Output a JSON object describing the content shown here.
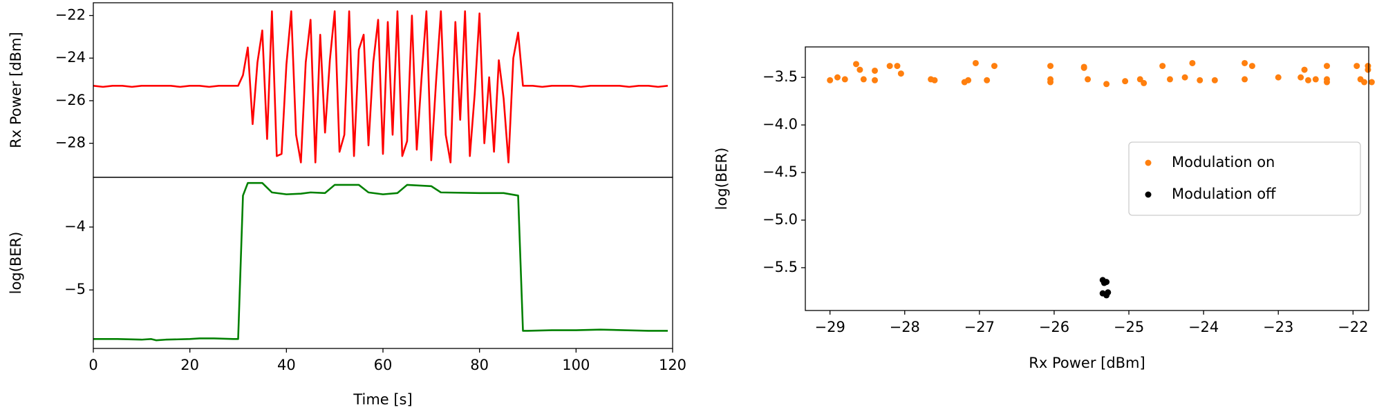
{
  "chart_data": [
    {
      "type": "line",
      "ylabel": "Rx Power [dBm]",
      "xlim": [
        0,
        120
      ],
      "ylim": [
        -29.6,
        -21.4
      ],
      "yticks": [
        {
          "value": -22,
          "label": "−22"
        },
        {
          "value": -24,
          "label": "−24"
        },
        {
          "value": -26,
          "label": "−26"
        },
        {
          "value": -28,
          "label": "−28"
        }
      ],
      "series": [
        {
          "name": "Rx Power",
          "color": "#ff0000",
          "x": [
            0,
            2,
            4,
            6,
            8,
            10,
            12,
            14,
            16,
            18,
            20,
            22,
            24,
            26,
            28,
            30,
            31,
            32,
            33,
            34,
            35,
            36,
            37,
            38,
            39,
            40,
            41,
            42,
            43,
            44,
            45,
            46,
            47,
            48,
            49,
            50,
            51,
            52,
            53,
            54,
            55,
            56,
            57,
            58,
            59,
            60,
            61,
            62,
            63,
            64,
            65,
            66,
            67,
            68,
            69,
            70,
            71,
            72,
            73,
            74,
            75,
            76,
            77,
            78,
            79,
            80,
            81,
            82,
            83,
            84,
            85,
            86,
            87,
            88,
            89,
            91,
            93,
            95,
            97,
            99,
            101,
            103,
            105,
            107,
            109,
            111,
            113,
            115,
            117,
            119
          ],
          "values": [
            -25.3,
            -25.35,
            -25.3,
            -25.3,
            -25.35,
            -25.3,
            -25.3,
            -25.3,
            -25.3,
            -25.35,
            -25.3,
            -25.3,
            -25.35,
            -25.3,
            -25.3,
            -25.3,
            -24.8,
            -23.5,
            -27.1,
            -24.2,
            -22.7,
            -27.8,
            -21.8,
            -28.6,
            -28.5,
            -24.3,
            -21.8,
            -27.6,
            -28.9,
            -24.2,
            -22.2,
            -28.9,
            -22.9,
            -27.5,
            -24.1,
            -21.8,
            -28.4,
            -27.6,
            -21.8,
            -28.6,
            -23.6,
            -22.9,
            -28.1,
            -24.2,
            -22.2,
            -28.5,
            -22.3,
            -27.6,
            -21.8,
            -28.6,
            -27.9,
            -22.0,
            -28.3,
            -24.9,
            -21.8,
            -28.8,
            -25.1,
            -21.8,
            -27.6,
            -28.9,
            -22.3,
            -26.9,
            -21.8,
            -28.6,
            -25.7,
            -21.9,
            -28.0,
            -24.9,
            -28.4,
            -24.1,
            -25.9,
            -28.9,
            -24.0,
            -22.8,
            -25.3,
            -25.3,
            -25.35,
            -25.3,
            -25.3,
            -25.3,
            -25.35,
            -25.3,
            -25.3,
            -25.3,
            -25.3,
            -25.35,
            -25.3,
            -25.3,
            -25.35,
            -25.3
          ]
        }
      ]
    },
    {
      "type": "line",
      "ylabel": "log(BER)",
      "xlabel": "Time [s]",
      "xlim": [
        0,
        120
      ],
      "ylim": [
        -5.93,
        -3.21
      ],
      "xticks": [
        0,
        20,
        40,
        60,
        80,
        100,
        120
      ],
      "yticks": [
        {
          "value": -4,
          "label": "−4"
        },
        {
          "value": -5,
          "label": "−5"
        }
      ],
      "series": [
        {
          "name": "log(BER)",
          "color": "#008000",
          "x": [
            0,
            5,
            10,
            12,
            13,
            15,
            20,
            22,
            25,
            29,
            30,
            31,
            32,
            35,
            37,
            40,
            43,
            45,
            48,
            50,
            55,
            57,
            60,
            63,
            65,
            70,
            72,
            80,
            85,
            88,
            89,
            90,
            95,
            100,
            105,
            110,
            115,
            119
          ],
          "values": [
            -5.78,
            -5.78,
            -5.79,
            -5.78,
            -5.8,
            -5.79,
            -5.78,
            -5.77,
            -5.77,
            -5.78,
            -5.78,
            -3.5,
            -3.3,
            -3.3,
            -3.45,
            -3.48,
            -3.47,
            -3.45,
            -3.46,
            -3.33,
            -3.33,
            -3.45,
            -3.48,
            -3.46,
            -3.33,
            -3.35,
            -3.45,
            -3.46,
            -3.46,
            -3.5,
            -5.65,
            -5.65,
            -5.64,
            -5.64,
            -5.63,
            -5.64,
            -5.65,
            -5.65
          ]
        }
      ]
    },
    {
      "type": "scatter",
      "ylabel": "log(BER)",
      "xlabel": "Rx Power [dBm]",
      "xlim": [
        -29.33,
        -21.79
      ],
      "ylim": [
        -5.95,
        -3.18
      ],
      "legend": "center right",
      "xticks": [
        {
          "value": -29,
          "label": "−29"
        },
        {
          "value": -28,
          "label": "−28"
        },
        {
          "value": -27,
          "label": "−27"
        },
        {
          "value": -26,
          "label": "−26"
        },
        {
          "value": -25,
          "label": "−25"
        },
        {
          "value": -24,
          "label": "−24"
        },
        {
          "value": -23,
          "label": "−23"
        },
        {
          "value": -22,
          "label": "−22"
        }
      ],
      "yticks": [
        {
          "value": -3.5,
          "label": "−3.5"
        },
        {
          "value": -4.0,
          "label": "−4.0"
        },
        {
          "value": -4.5,
          "label": "−4.5"
        },
        {
          "value": -5.0,
          "label": "−5.0"
        },
        {
          "value": -5.5,
          "label": "−5.5"
        }
      ],
      "series": [
        {
          "name": "Modulation on",
          "color": "#ff7f0e",
          "x": [
            -29,
            -28.9,
            -28.8,
            -28.65,
            -28.6,
            -28.55,
            -28.4,
            -28.4,
            -28.2,
            -28.1,
            -28.05,
            -27.65,
            -27.6,
            -27.2,
            -27.15,
            -27.05,
            -26.9,
            -26.8,
            -26.05,
            -26.05,
            -26.05,
            -25.6,
            -25.6,
            -25.55,
            -25.3,
            -25.05,
            -24.85,
            -24.8,
            -24.55,
            -24.45,
            -24.25,
            -24.15,
            -24.05,
            -23.85,
            -23.45,
            -23.45,
            -23.35,
            -23,
            -22.7,
            -22.65,
            -22.6,
            -22.5,
            -22.35,
            -22.35,
            -22.35,
            -21.95,
            -21.9,
            -21.85,
            -21.8,
            -21.8,
            -21.75
          ],
          "values": [
            -3.53,
            -3.5,
            -3.52,
            -3.36,
            -3.42,
            -3.52,
            -3.53,
            -3.43,
            -3.38,
            -3.38,
            -3.46,
            -3.52,
            -3.53,
            -3.55,
            -3.53,
            -3.35,
            -3.53,
            -3.38,
            -3.38,
            -3.52,
            -3.55,
            -3.39,
            -3.4,
            -3.52,
            -3.57,
            -3.54,
            -3.52,
            -3.56,
            -3.38,
            -3.52,
            -3.5,
            -3.35,
            -3.53,
            -3.53,
            -3.35,
            -3.52,
            -3.38,
            -3.5,
            -3.5,
            -3.42,
            -3.53,
            -3.52,
            -3.38,
            -3.52,
            -3.55,
            -3.38,
            -3.52,
            -3.55,
            -3.42,
            -3.38,
            -3.55
          ]
        },
        {
          "name": "Modulation off",
          "color": "#000000",
          "x": [
            -25.35,
            -25.3,
            -25.35,
            -25.3,
            -25.33,
            -25.28
          ],
          "values": [
            -5.63,
            -5.65,
            -5.77,
            -5.79,
            -5.66,
            -5.76
          ]
        }
      ]
    }
  ]
}
